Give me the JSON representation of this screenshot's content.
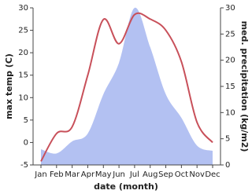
{
  "chart_data": {
    "type": "line",
    "x_label": "date (month)",
    "y_label": "max temp (C)",
    "y2_label": "med. precipitation (kg/m2)",
    "categories": [
      "Jan",
      "Feb",
      "Mar",
      "Apr",
      "May",
      "Jun",
      "Jul",
      "Aug",
      "Sep",
      "Oct",
      "Nov",
      "Dec"
    ],
    "series": [
      {
        "name": "max temp",
        "color": "#c8505a",
        "values": [
          -4.2,
          2,
          3.5,
          15,
          27.4,
          22,
          28.5,
          27.5,
          25,
          18,
          4.5,
          0
        ]
      },
      {
        "name": "precipitation",
        "color": "#b3c1f2",
        "axis": "y2",
        "values": [
          3,
          2.2,
          4.5,
          6,
          13.5,
          19.5,
          30,
          22.5,
          13.5,
          9,
          3.7,
          2.7
        ]
      }
    ],
    "ylim": [
      -5,
      30
    ],
    "yticks": [
      -5,
      0,
      5,
      10,
      15,
      20,
      25,
      30
    ],
    "y2lim": [
      0,
      30
    ],
    "y2ticks": [
      0,
      5,
      10,
      15,
      20,
      25,
      30
    ]
  }
}
